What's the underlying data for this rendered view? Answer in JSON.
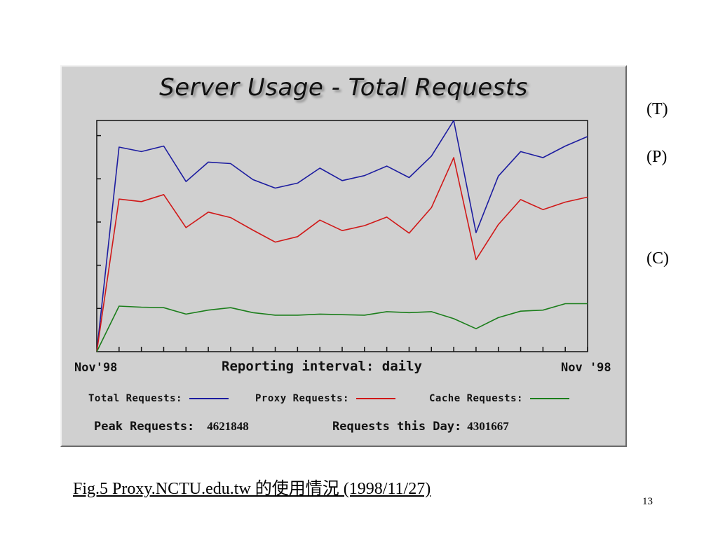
{
  "chart_data": {
    "type": "line",
    "title": "Server Usage - Total Requests",
    "x_start_label": "Nov'98",
    "x_end_label": "Nov '98",
    "xlabel": "Reporting interval:  daily",
    "x": [
      1,
      2,
      3,
      4,
      5,
      6,
      7,
      8,
      9,
      10,
      11,
      12,
      13,
      14,
      15,
      16,
      17,
      18,
      19,
      20,
      21,
      22,
      23
    ],
    "ylim": [
      0,
      4621848
    ],
    "y_tick_count": 5,
    "series": [
      {
        "name": "Total Requests:",
        "color": "#1c1ca0",
        "values": [
          0,
          4090000,
          4000000,
          4110000,
          3400000,
          3790000,
          3760000,
          3440000,
          3270000,
          3370000,
          3670000,
          3420000,
          3520000,
          3710000,
          3480000,
          3910000,
          4621848,
          2380000,
          3510000,
          4000000,
          3880000,
          4110000,
          4301667
        ]
      },
      {
        "name": "Proxy Requests:",
        "color": "#d01818",
        "values": [
          0,
          3050000,
          3000000,
          3140000,
          2480000,
          2790000,
          2680000,
          2430000,
          2190000,
          2300000,
          2630000,
          2420000,
          2520000,
          2690000,
          2370000,
          2880000,
          3880000,
          1840000,
          2540000,
          3040000,
          2840000,
          2990000,
          3090000
        ]
      },
      {
        "name": "Cache Requests:",
        "color": "#1b7e1b",
        "values": [
          0,
          910000,
          890000,
          880000,
          750000,
          830000,
          880000,
          780000,
          730000,
          730000,
          750000,
          740000,
          730000,
          800000,
          780000,
          800000,
          660000,
          460000,
          680000,
          810000,
          830000,
          960000,
          960000
        ]
      }
    ]
  },
  "stats": {
    "peak_label": "Peak Requests:",
    "peak_value": "4621848",
    "day_label": "Requests this Day:",
    "day_value": "4301667"
  },
  "markers": [
    "(T)",
    "(P)",
    "(C)"
  ],
  "caption": "Fig.5 Proxy.NCTU.edu.tw 的使用情況 (1998/11/27)",
  "page_number": "13"
}
